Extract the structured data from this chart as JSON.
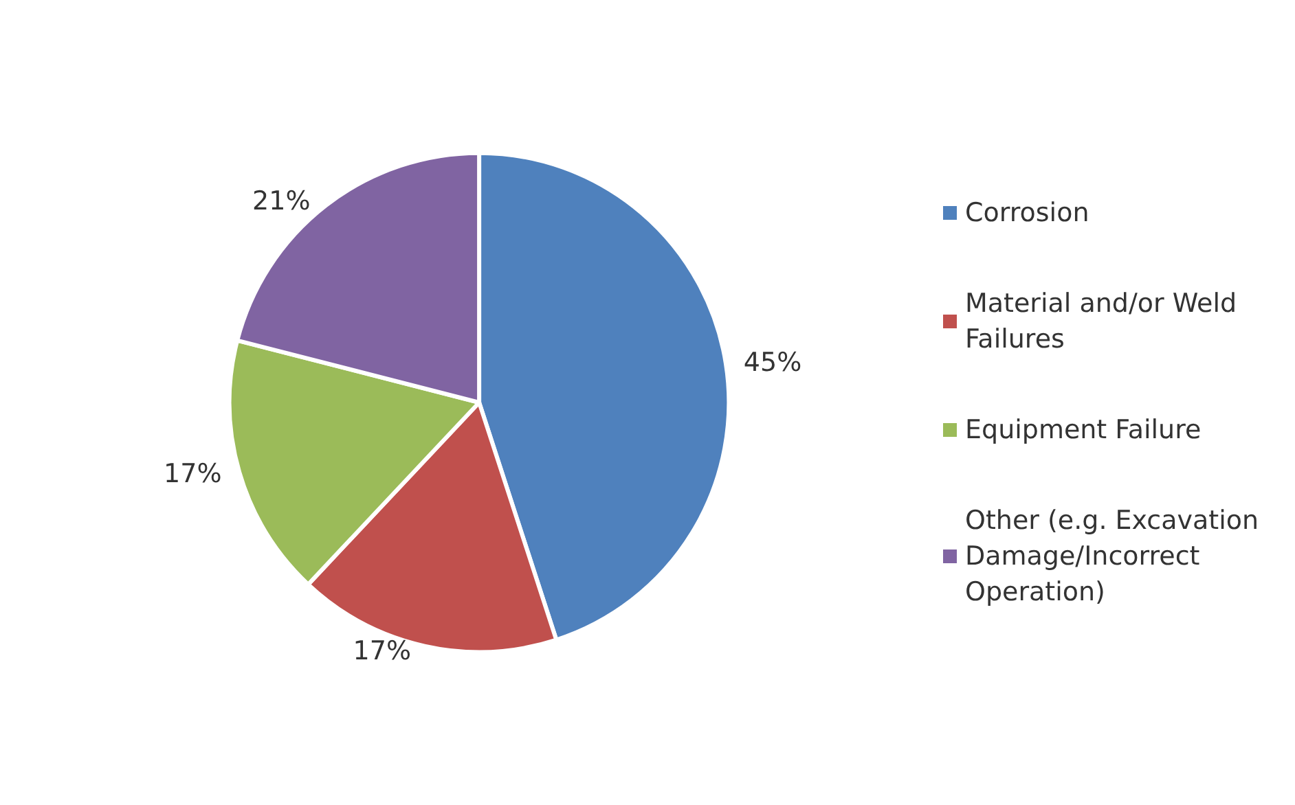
{
  "chart_data": {
    "type": "pie",
    "categories": [
      "Corrosion",
      "Material and/or Weld Failures",
      "Equipment Failure",
      "Other (e.g. Excavation Damage/Incorrect Operation)"
    ],
    "values": [
      45,
      17,
      17,
      21
    ],
    "colors": [
      "#4f81bd",
      "#c0504d",
      "#9bbb59",
      "#8064a2"
    ],
    "value_labels": [
      "45%",
      "17%",
      "17%",
      "21%"
    ],
    "legend": "right"
  }
}
